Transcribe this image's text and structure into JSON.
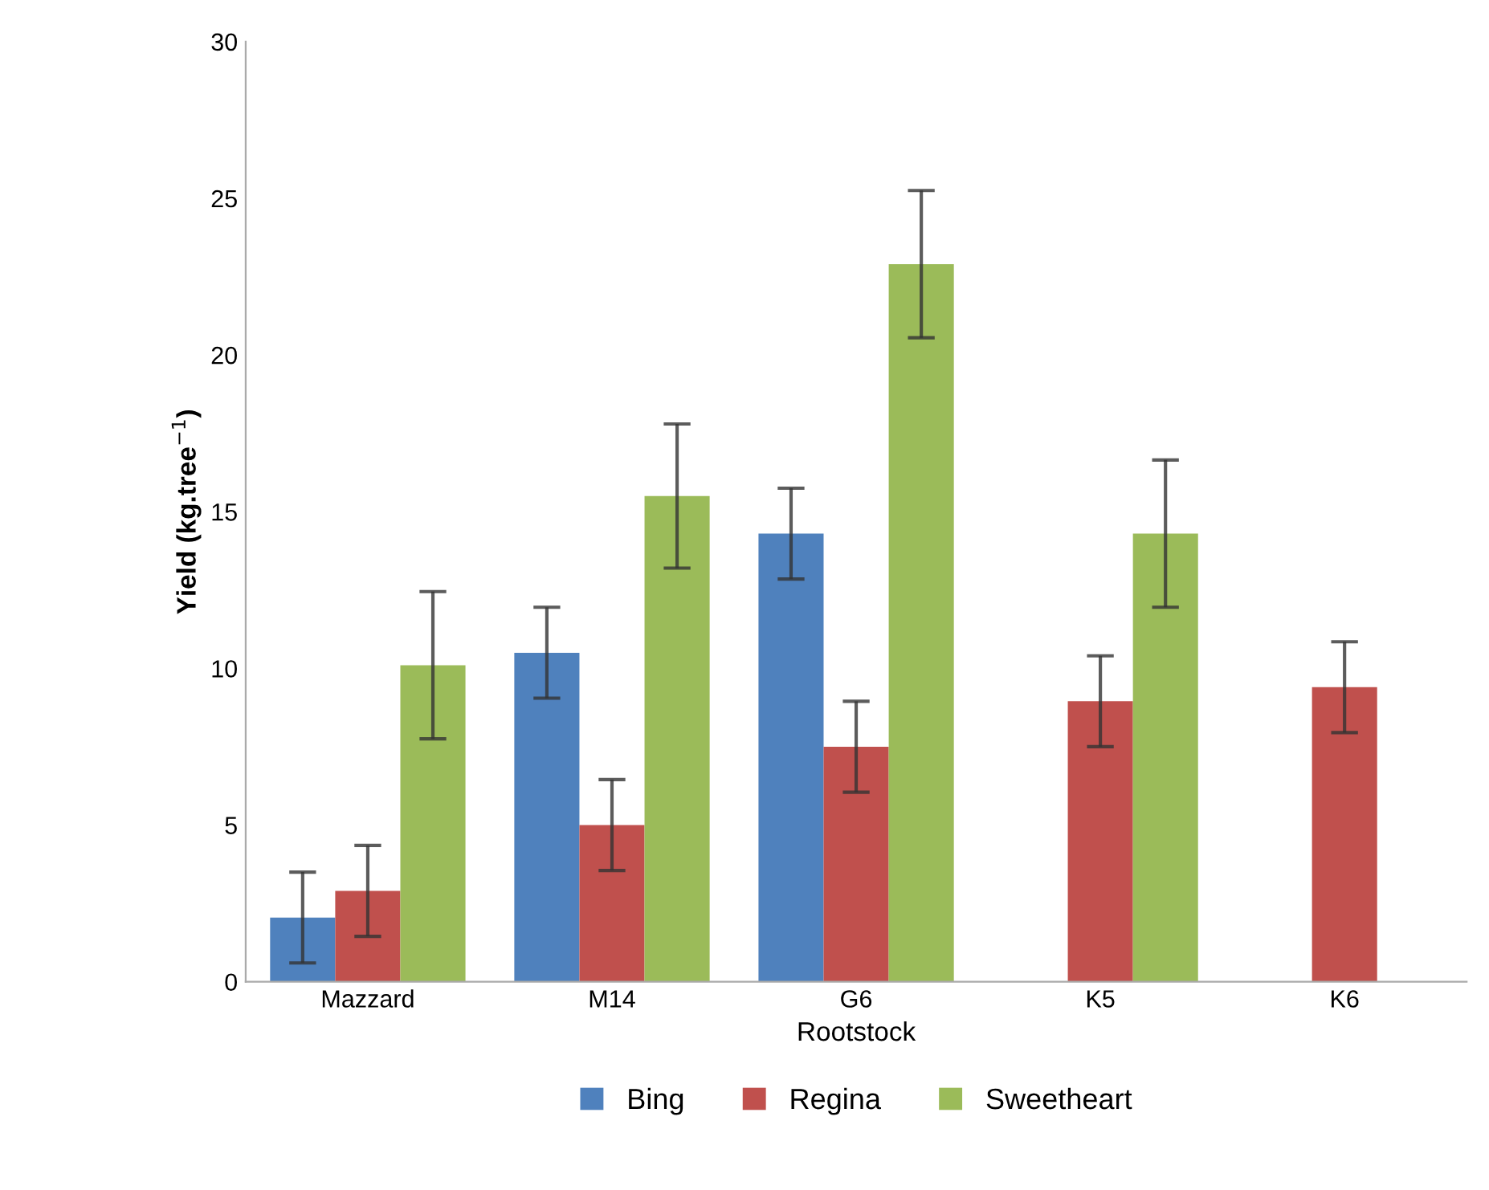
{
  "chart_data": {
    "type": "bar",
    "xlabel": "Rootstock",
    "ylabel": "Yield (kg.tree$^{−1}$)",
    "categories": [
      "Mazzard",
      "M14",
      "G6",
      "K5",
      "K6"
    ],
    "series": [
      {
        "name": "Bing",
        "color": "#4f81bd",
        "values": [
          2.05,
          10.5,
          14.3,
          null,
          null
        ],
        "errors": [
          1.45,
          1.45,
          1.45,
          null,
          null
        ]
      },
      {
        "name": "Regina",
        "color": "#c0504d",
        "values": [
          2.9,
          5.0,
          7.5,
          8.95,
          9.4
        ],
        "errors": [
          1.45,
          1.45,
          1.45,
          1.45,
          1.45
        ]
      },
      {
        "name": "Sweetheart",
        "color": "#9bbb59",
        "values": [
          10.1,
          15.5,
          22.9,
          14.3,
          null
        ],
        "errors": [
          2.35,
          2.3,
          2.35,
          2.35,
          null
        ]
      }
    ],
    "ylim": [
      0,
      30
    ],
    "yticks": [
      0,
      5,
      10,
      15,
      20,
      25,
      30
    ],
    "grid": false,
    "legend": "bottom"
  }
}
